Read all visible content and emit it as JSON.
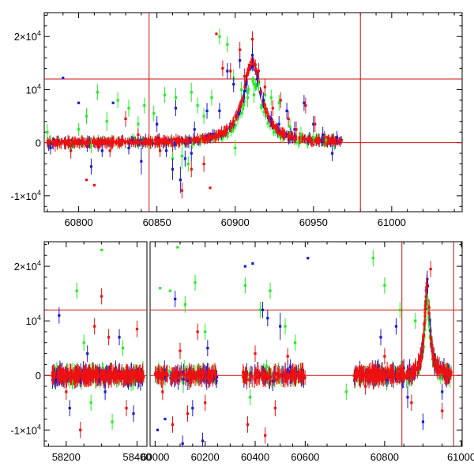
{
  "chart_data": [
    {
      "type": "scatter",
      "panel": "top",
      "title": "",
      "xlabel": "",
      "ylabel": "",
      "xlim": [
        60778,
        61045
      ],
      "ylim": [
        -13000,
        24500
      ],
      "x_ticks": [
        60800,
        60850,
        60900,
        60950,
        61000
      ],
      "x_tick_labels": [
        "60800",
        "60850",
        "60900",
        "60950",
        "61000"
      ],
      "y_ticks": [
        -10000,
        0,
        10000,
        20000
      ],
      "y_tick_labels": [
        {
          "mantissa": "-1×10",
          "exp": "4"
        },
        {
          "mantissa": "0",
          "exp": ""
        },
        {
          "mantissa": "10",
          "exp": "4"
        },
        {
          "mantissa": "2×10",
          "exp": "4"
        }
      ],
      "vertical_lines": [
        60845,
        60980
      ],
      "horizontal_lines": [
        0,
        12000
      ],
      "line_color": "#cc1111",
      "series": [
        {
          "name": "green",
          "color": "#22ee22"
        },
        {
          "name": "blue",
          "color": "#1a1acc"
        },
        {
          "name": "red",
          "color": "#ee1111"
        }
      ],
      "light_curve": {
        "peak_x": 60911,
        "peak_y": 15500,
        "width": 7,
        "x_start": 60780,
        "x_end": 60968
      },
      "scatter_points": {
        "green": [
          [
            60780,
            2000,
            1500
          ],
          [
            60795,
            -1000,
            1200
          ],
          [
            60805,
            5000,
            1500
          ],
          [
            60812,
            9500,
            1500
          ],
          [
            60818,
            4000,
            1800
          ],
          [
            60825,
            8000,
            1500
          ],
          [
            60832,
            6500,
            1600
          ],
          [
            60842,
            7000,
            1500
          ],
          [
            60848,
            5500,
            1500
          ],
          [
            60855,
            9000,
            1500
          ],
          [
            60862,
            8500,
            1800
          ],
          [
            60866,
            -2500,
            2500
          ],
          [
            60872,
            9500,
            1800
          ],
          [
            60876,
            7000,
            1500
          ],
          [
            60880,
            5000,
            1500
          ],
          [
            60885,
            8500,
            1500
          ],
          [
            60890,
            20000,
            1500
          ],
          [
            60895,
            18500,
            1500
          ],
          [
            60899,
            12000,
            1800
          ],
          [
            60904,
            10000,
            1500
          ],
          [
            60908,
            8500,
            1800
          ],
          [
            60912,
            9000,
            1500
          ],
          [
            60915,
            11000,
            1500
          ],
          [
            60919,
            9000,
            1500
          ],
          [
            60923,
            8500,
            1500
          ],
          [
            60928,
            7500,
            1500
          ],
          [
            60935,
            3000,
            1500
          ],
          [
            60942,
            1500,
            1500
          ],
          [
            60950,
            1000,
            1200
          ],
          [
            60958,
            500,
            1200
          ],
          [
            60800,
            2500,
            1200
          ],
          [
            60808,
            -500,
            1500
          ],
          [
            60838,
            3500,
            1500
          ],
          [
            60860,
            -3000,
            1500
          ],
          [
            60870,
            -4000,
            1500
          ],
          [
            60900,
            -1000,
            1500
          ]
        ],
        "blue": [
          [
            60782,
            -1000,
            1200
          ],
          [
            60790,
            12200,
            0
          ],
          [
            60800,
            7500,
            0
          ],
          [
            60808,
            -4500,
            1500
          ],
          [
            60815,
            -1500,
            1200
          ],
          [
            60822,
            7500,
            0
          ],
          [
            60832,
            -1000,
            1200
          ],
          [
            60840,
            -3500,
            2500
          ],
          [
            60850,
            3500,
            1500
          ],
          [
            60856,
            -1500,
            1200
          ],
          [
            60862,
            6500,
            1500
          ],
          [
            60865,
            -7000,
            2500
          ],
          [
            60868,
            -3000,
            1500
          ],
          [
            60874,
            2500,
            1500
          ],
          [
            60882,
            6000,
            1500
          ],
          [
            60890,
            6000,
            1500
          ],
          [
            60895,
            13500,
            1500
          ],
          [
            60899,
            11000,
            1500
          ],
          [
            60903,
            15500,
            1500
          ],
          [
            60907,
            11000,
            1500
          ],
          [
            60911,
            16500,
            1500
          ],
          [
            60914,
            12000,
            1500
          ],
          [
            60918,
            8000,
            1500
          ],
          [
            60923,
            4500,
            1500
          ],
          [
            60928,
            3500,
            1500
          ],
          [
            60933,
            6000,
            1500
          ],
          [
            60938,
            2500,
            1500
          ],
          [
            60944,
            7500,
            1500
          ],
          [
            60950,
            3500,
            1500
          ],
          [
            60956,
            1500,
            1500
          ],
          [
            60962,
            -2000,
            1500
          ],
          [
            60965,
            1000,
            1200
          ],
          [
            60860,
            -5000,
            2000
          ],
          [
            60872,
            -2000,
            1500
          ]
        ],
        "red": [
          [
            60785,
            -500,
            1200
          ],
          [
            60795,
            -1500,
            1500
          ],
          [
            60805,
            -7000,
            0
          ],
          [
            60810,
            -8000,
            0
          ],
          [
            60820,
            -1500,
            1200
          ],
          [
            60830,
            4500,
            1500
          ],
          [
            60838,
            1500,
            1200
          ],
          [
            60846,
            0,
            1200
          ],
          [
            60852,
            -1500,
            1200
          ],
          [
            60860,
            -500,
            1200
          ],
          [
            60866,
            -9000,
            1500
          ],
          [
            60872,
            -5000,
            1500
          ],
          [
            60880,
            -4000,
            1500
          ],
          [
            60884,
            -8500,
            0
          ],
          [
            60888,
            20500,
            0
          ],
          [
            60892,
            14000,
            1500
          ],
          [
            60897,
            13500,
            1500
          ],
          [
            60903,
            17500,
            1500
          ],
          [
            60906,
            12500,
            1500
          ],
          [
            60911,
            19500,
            1500
          ],
          [
            60915,
            13500,
            1500
          ],
          [
            60919,
            10500,
            1500
          ],
          [
            60924,
            6500,
            1500
          ],
          [
            60929,
            8000,
            1500
          ],
          [
            60934,
            4500,
            1500
          ],
          [
            60939,
            2500,
            1500
          ],
          [
            60945,
            7000,
            1500
          ],
          [
            60951,
            3500,
            1500
          ],
          [
            60957,
            1000,
            1200
          ],
          [
            60963,
            500,
            1200
          ]
        ]
      }
    },
    {
      "type": "scatter",
      "panel": "bottom",
      "title": "",
      "xlabel": "",
      "ylabel": "",
      "ylim": [
        -13000,
        24500
      ],
      "segments": [
        {
          "xlim": [
            58138,
            58428
          ],
          "x_ticks": [
            58200,
            58400
          ],
          "x_tick_labels": [
            "58200",
            "58400"
          ],
          "data_range": [
            58160,
            58420
          ]
        },
        {
          "xlim": [
            59980,
            60580
          ],
          "x_ticks": [
            60000,
            60200,
            60400,
            60600
          ],
          "x_tick_labels": [
            "60000",
            "60200",
            "60400",
            "60600"
          ],
          "data_range": [
            60000,
            60600
          ],
          "gap": [
            60250,
            60350
          ]
        },
        {
          "xlim": [
            60580,
            61002
          ],
          "x_ticks": [
            60800,
            61000
          ],
          "x_tick_labels": [
            "60800",
            "61000"
          ],
          "data_range": [
            60720,
            60975
          ]
        }
      ],
      "y_ticks": [
        -10000,
        0,
        10000,
        20000
      ],
      "y_tick_labels": [
        {
          "mantissa": "-1×10",
          "exp": "4"
        },
        {
          "mantissa": "0",
          "exp": ""
        },
        {
          "mantissa": "10",
          "exp": "4"
        },
        {
          "mantissa": "2×10",
          "exp": "4"
        }
      ],
      "vertical_lines": [
        60845,
        60980
      ],
      "horizontal_lines": [
        0,
        12000
      ],
      "line_color": "#cc1111",
      "series": [
        {
          "name": "green",
          "color": "#22ee22"
        },
        {
          "name": "blue",
          "color": "#1a1acc"
        },
        {
          "name": "red",
          "color": "#ee1111"
        }
      ],
      "light_curve": {
        "peak_x": 60911,
        "peak_y": 17000,
        "width": 8
      },
      "scatter_points": {
        "green": [
          [
            58230,
            15500,
            1500
          ],
          [
            58270,
            -5000,
            1500
          ],
          [
            58300,
            23000,
            0
          ],
          [
            58330,
            -8500,
            1500
          ],
          [
            58360,
            5000,
            1500
          ],
          [
            58250,
            6000,
            1500
          ],
          [
            60020,
            16000,
            0
          ],
          [
            60060,
            15500,
            0
          ],
          [
            60090,
            23500,
            0
          ],
          [
            60120,
            13000,
            1500
          ],
          [
            60160,
            17000,
            1500
          ],
          [
            60200,
            8000,
            1500
          ],
          [
            60360,
            16500,
            1500
          ],
          [
            60380,
            -4000,
            1500
          ],
          [
            60420,
            12000,
            1500
          ],
          [
            60460,
            15500,
            1500
          ],
          [
            60520,
            9000,
            1500
          ],
          [
            60560,
            6000,
            1500
          ],
          [
            60770,
            21500,
            1500
          ],
          [
            60800,
            16500,
            1500
          ],
          [
            60840,
            12000,
            1500
          ],
          [
            60880,
            10000,
            1500
          ],
          [
            60700,
            -3000,
            1500
          ]
        ],
        "blue": [
          [
            58180,
            11000,
            1500
          ],
          [
            58210,
            -6000,
            1500
          ],
          [
            58260,
            4000,
            1500
          ],
          [
            58310,
            -3000,
            1500
          ],
          [
            58350,
            7000,
            1500
          ],
          [
            58390,
            -7000,
            1500
          ],
          [
            60010,
            -10000,
            0
          ],
          [
            60040,
            -8000,
            0
          ],
          [
            60080,
            14000,
            1500
          ],
          [
            60110,
            -12500,
            1500
          ],
          [
            60150,
            -6000,
            1500
          ],
          [
            60190,
            -12000,
            1500
          ],
          [
            60210,
            5000,
            1500
          ],
          [
            60360,
            20000,
            0
          ],
          [
            60390,
            20500,
            0
          ],
          [
            60430,
            12000,
            1500
          ],
          [
            60450,
            10500,
            1500
          ],
          [
            60500,
            9000,
            2500
          ],
          [
            60600,
            21500,
            0
          ],
          [
            60790,
            7000,
            1500
          ],
          [
            60830,
            9000,
            1500
          ],
          [
            60860,
            -4000,
            2000
          ],
          [
            60900,
            -8500,
            1500
          ],
          [
            60950,
            -3000,
            1500
          ]
        ],
        "red": [
          [
            58200,
            -3000,
            1500
          ],
          [
            58240,
            -10000,
            1500
          ],
          [
            58280,
            9000,
            1500
          ],
          [
            58300,
            14500,
            1500
          ],
          [
            58320,
            7000,
            1500
          ],
          [
            58370,
            -6000,
            1500
          ],
          [
            58400,
            8500,
            1500
          ],
          [
            60030,
            -3000,
            1500
          ],
          [
            60070,
            -9000,
            1500
          ],
          [
            60100,
            4500,
            1500
          ],
          [
            60130,
            -7000,
            1500
          ],
          [
            60170,
            8000,
            1500
          ],
          [
            60200,
            -5000,
            1500
          ],
          [
            60370,
            -9000,
            1500
          ],
          [
            60400,
            4000,
            1500
          ],
          [
            60440,
            -11000,
            1500
          ],
          [
            60480,
            -6000,
            1500
          ],
          [
            60530,
            3500,
            1500
          ],
          [
            60750,
            -2000,
            1500
          ],
          [
            60800,
            3500,
            1500
          ],
          [
            60870,
            -5000,
            1500
          ],
          [
            60920,
            19500,
            1500
          ],
          [
            60950,
            -6500,
            1500
          ]
        ]
      }
    }
  ]
}
